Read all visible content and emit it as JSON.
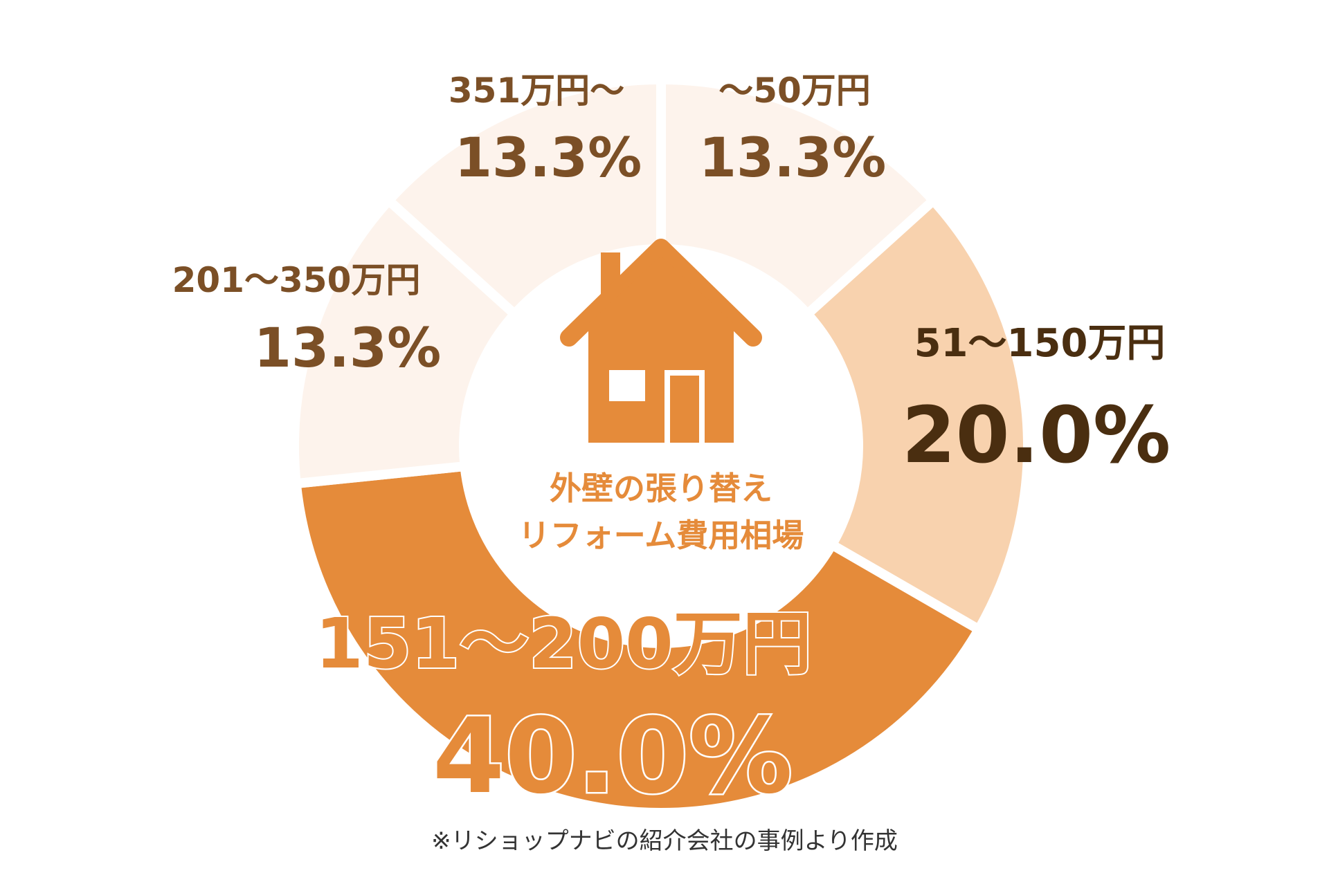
{
  "chart_data": {
    "type": "pie",
    "variant": "donut",
    "center_title": [
      "外壁の張り替え",
      "リフォーム費用相場"
    ],
    "center_icon": "house-icon",
    "slices": [
      {
        "label": "〜50万円",
        "value": 13.3,
        "value_text": "13.3%",
        "color": "#FDF3EC"
      },
      {
        "label": "51〜150万円",
        "value": 20.0,
        "value_text": "20.0%",
        "color": "#F8D2AE"
      },
      {
        "label": "151〜200万円",
        "value": 40.0,
        "value_text": "40.0%",
        "color": "#E58B3A"
      },
      {
        "label": "201〜350万円",
        "value": 13.3,
        "value_text": "13.3%",
        "color": "#FDF3EC"
      },
      {
        "label": "351万円〜",
        "value": 13.3,
        "value_text": "13.3%",
        "color": "#FDF3EC"
      }
    ]
  },
  "colors": {
    "label_brown": "#7B4F26",
    "label_dark": "#4A2E10",
    "accent_orange": "#E58B3A",
    "center_text": "#E58B3A"
  },
  "footnote": "※リショップナビの紹介会社の事例より作成"
}
